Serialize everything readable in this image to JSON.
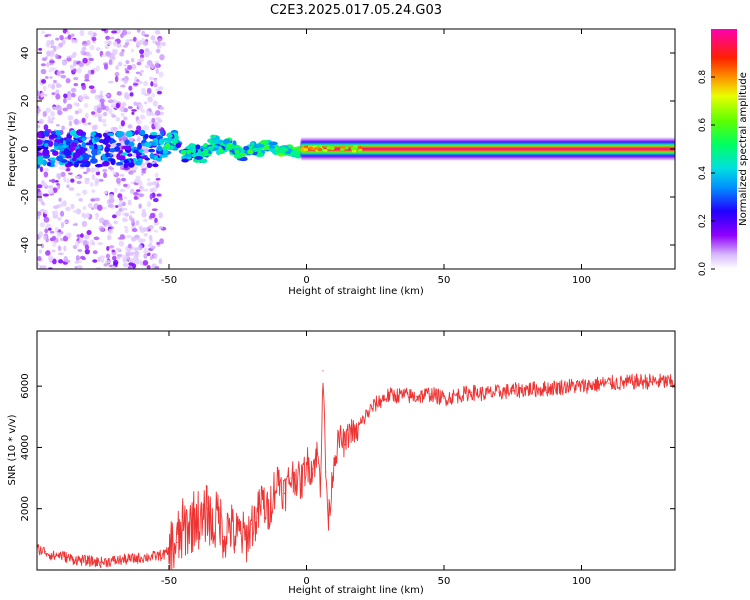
{
  "figure": {
    "title": "C2E3.2025.017.05.24.G03"
  },
  "chart_data": [
    {
      "type": "heatmap",
      "title": "C2E3.2025.017.05.24.G03",
      "xlabel": "Height of straight line (km)",
      "ylabel": "Frequency (Hz)",
      "xlim": [
        -98,
        134
      ],
      "ylim": [
        -50,
        50
      ],
      "xticks": [
        -50,
        0,
        50,
        100
      ],
      "yticks": [
        -40,
        -20,
        0,
        20,
        40
      ],
      "colorbar": {
        "label": "Normalized spectral amplitude",
        "range": [
          0,
          1
        ],
        "ticks": [
          0.0,
          0.2,
          0.4,
          0.6,
          0.8
        ],
        "colormap": [
          "#ffffff",
          "#c8a0ff",
          "#8000ff",
          "#0000ff",
          "#00c8ff",
          "#00ff80",
          "#80ff00",
          "#ffff00",
          "#ff8000",
          "#ff0000",
          "#ff00c8"
        ]
      },
      "description_regions": [
        {
          "x_range": [
            -98,
            -52
          ],
          "freq_range": [
            -50,
            50
          ],
          "level": "low-to-mid scattered"
        },
        {
          "x_range": [
            -52,
            20
          ],
          "freq_center_range": [
            -5,
            5
          ],
          "level": "mid to high, wavy band"
        },
        {
          "x_range": [
            20,
            134
          ],
          "freq_center": 0,
          "level": "maximum (~0.95), narrow band"
        }
      ]
    },
    {
      "type": "line",
      "xlabel": "Height of straight line (km)",
      "ylabel": "SNR (10 * v/v)",
      "xlim": [
        -98,
        134
      ],
      "ylim": [
        0,
        7800
      ],
      "xticks": [
        -50,
        0,
        50,
        100
      ],
      "yticks": [
        2000,
        4000,
        6000
      ],
      "color": "#ee3333",
      "series": [
        {
          "x": [
            -98,
            -95,
            -92,
            -90,
            -85,
            -80,
            -75,
            -70,
            -65,
            -60,
            -55,
            -52,
            -50,
            -47,
            -45,
            -42,
            -40,
            -38,
            -36,
            -34,
            -32,
            -30,
            -28,
            -26,
            -24,
            -22,
            -20,
            -18,
            -16,
            -14,
            -12,
            -10,
            -8,
            -6,
            -4,
            -2,
            0,
            2,
            4,
            5,
            6,
            7,
            8,
            10,
            12,
            14,
            16,
            18,
            20,
            22,
            25,
            28,
            30,
            35,
            40,
            45,
            50,
            55,
            60,
            65,
            70,
            75,
            80,
            85,
            90,
            95,
            100,
            105,
            110,
            115,
            120,
            125,
            130,
            134
          ],
          "values": [
            700,
            600,
            450,
            500,
            350,
            300,
            250,
            300,
            350,
            400,
            450,
            500,
            600,
            900,
            1300,
            1500,
            1800,
            1400,
            2000,
            1300,
            1900,
            1100,
            1500,
            1100,
            1200,
            1000,
            1500,
            1700,
            2300,
            1800,
            2600,
            3000,
            2500,
            3000,
            3100,
            2800,
            3500,
            3300,
            3800,
            2800,
            6500,
            3200,
            1600,
            3600,
            4300,
            4100,
            4600,
            4400,
            4800,
            5100,
            5400,
            5600,
            5700,
            5700,
            5650,
            5750,
            5600,
            5700,
            5800,
            5750,
            5800,
            5850,
            5900,
            5900,
            5950,
            6000,
            6000,
            6050,
            6100,
            6100,
            6150,
            6150,
            6150,
            6100
          ]
        }
      ]
    }
  ]
}
